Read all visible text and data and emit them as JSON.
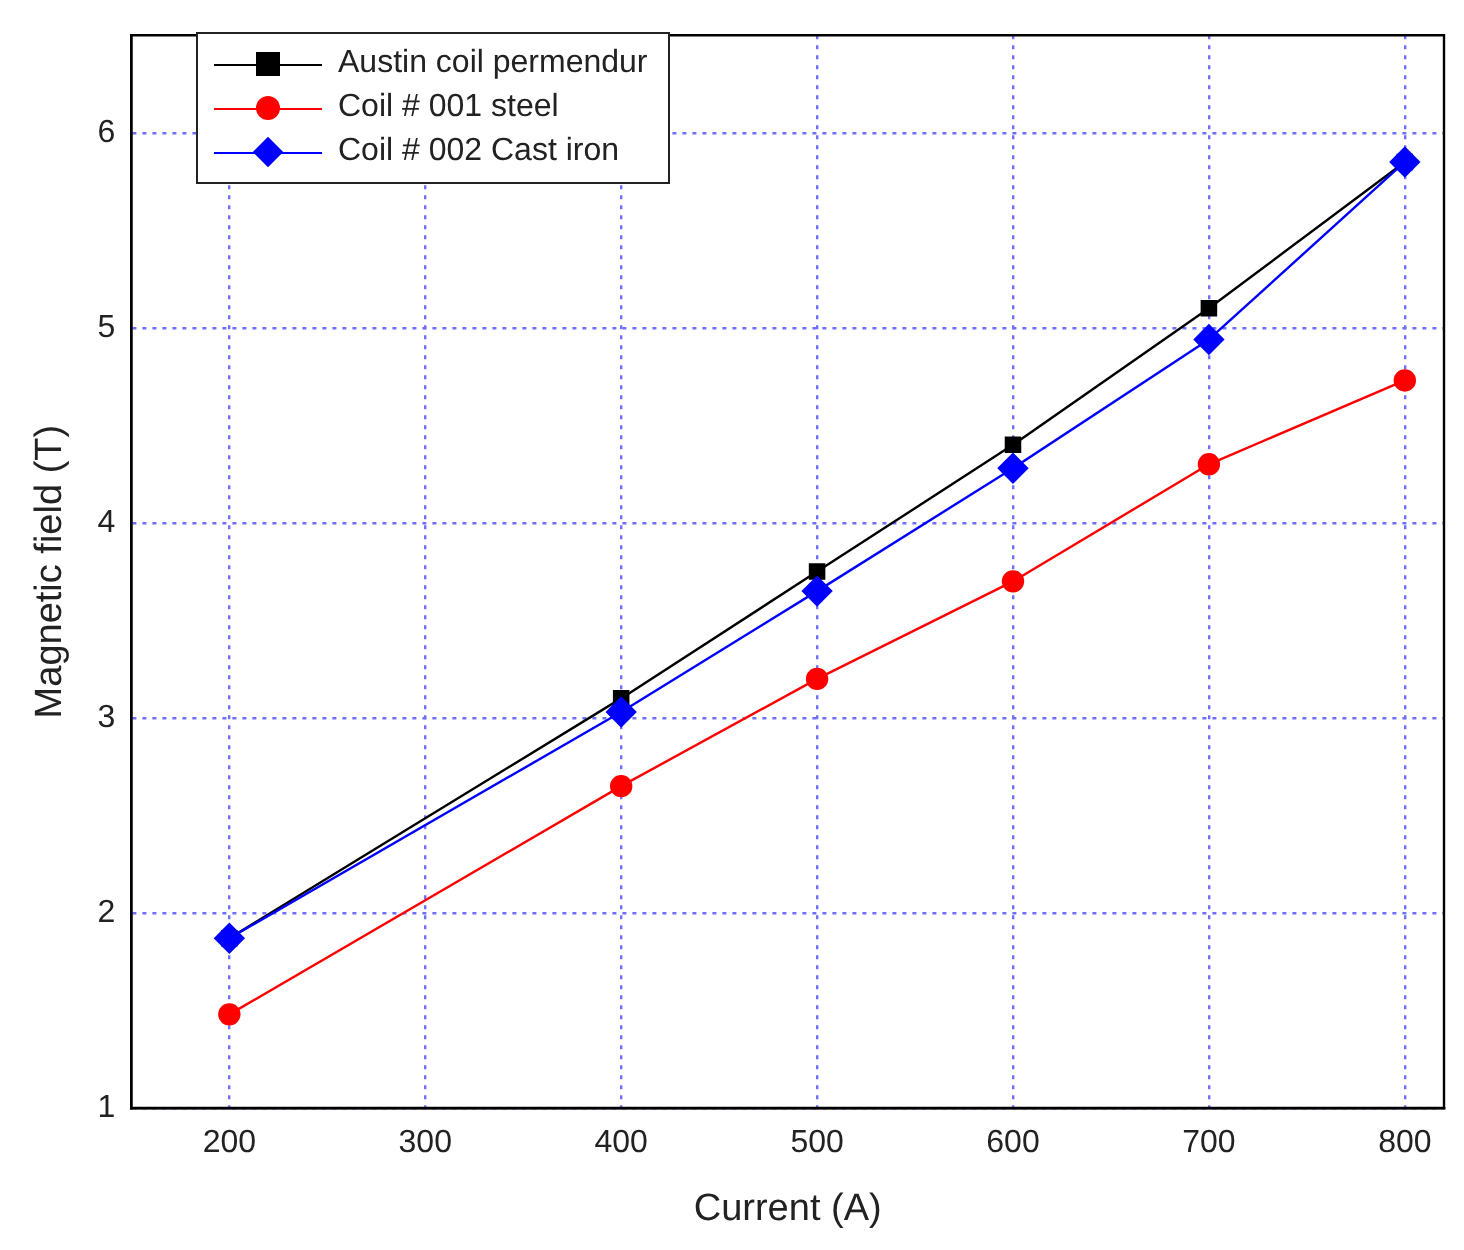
{
  "chart_data": {
    "type": "line",
    "xlabel": "Current (A)",
    "ylabel": "Magnetic field (T)",
    "x": [
      200,
      400,
      500,
      600,
      700,
      800
    ],
    "series": [
      {
        "name": "Austin coil permendur",
        "color": "#000000",
        "marker": "square",
        "values": [
          1.87,
          3.1,
          3.75,
          4.4,
          5.1,
          5.85
        ]
      },
      {
        "name": "Coil # 001 steel",
        "color": "#ff0000",
        "marker": "circle",
        "values": [
          1.48,
          2.65,
          3.2,
          3.7,
          4.3,
          4.73
        ]
      },
      {
        "name": "Coil # 002 Cast iron",
        "color": "#0000ff",
        "marker": "diamond",
        "values": [
          1.87,
          3.03,
          3.65,
          4.28,
          4.94,
          5.85
        ]
      }
    ],
    "xlim": [
      150,
      820
    ],
    "xticks": [
      200,
      300,
      400,
      500,
      600,
      700,
      800
    ],
    "ylim": [
      1,
      6.5
    ],
    "yticks": [
      1,
      2,
      3,
      4,
      5,
      6
    ],
    "grid": true,
    "legend": "top left",
    "line_style": "solid"
  }
}
